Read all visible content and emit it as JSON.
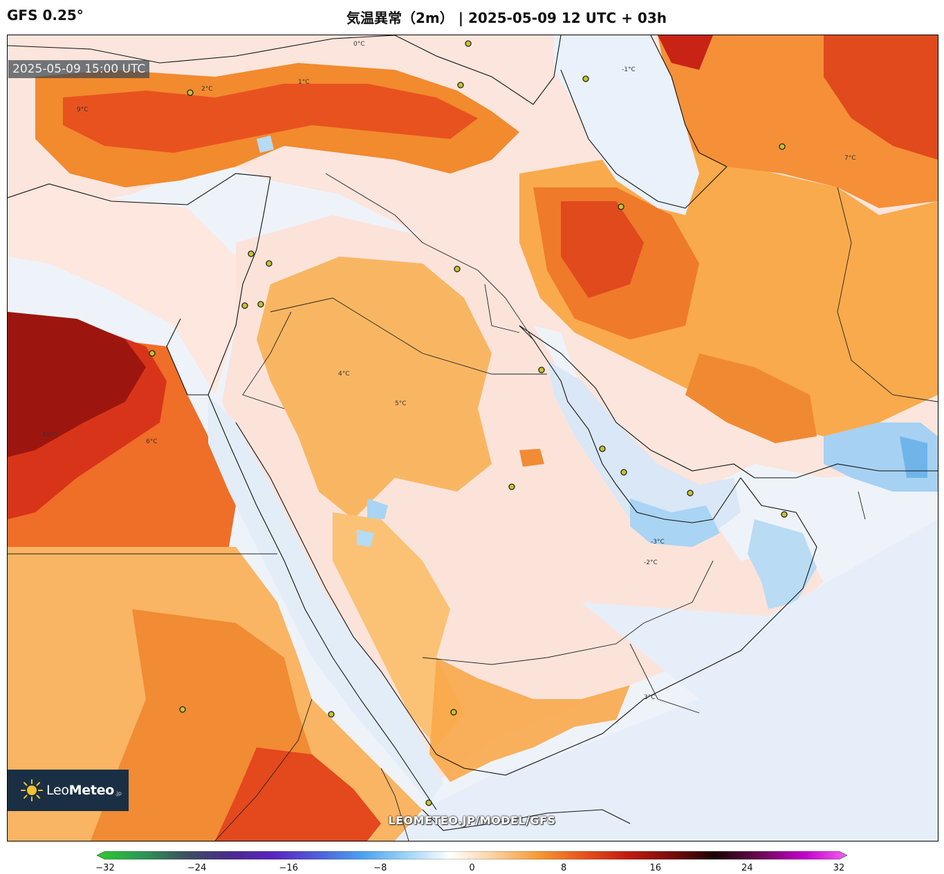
{
  "header": {
    "model": "GFS 0.25°",
    "title": "気温異常（2m） | 2025-05-09 12 UTC + 03h"
  },
  "map": {
    "timestamp": "2025-05-09 15:00 UTC",
    "watermark": "LEOMETEO.JP/MODEL/GFS",
    "contour_labels": [
      "0°C",
      "1°C",
      "-1°C",
      "2°C",
      "-2°C",
      "3°C",
      "-3°C",
      "4°C",
      "5°C",
      "6°C",
      "7°C",
      "9°C",
      "10°C"
    ],
    "colors": {
      "ocean_cool": "#e8eef8",
      "light_pos": "#fbe3dc",
      "orange": "#f9b25a",
      "deep_orange": "#f28a2e",
      "red": "#e84a1f",
      "dark_red": "#b11e10",
      "cool_blue": "#a9d4f3"
    }
  },
  "logo": {
    "name_light": "Leo",
    "name_bold": "Meteo",
    "suffix": ".jp"
  },
  "colorbar": {
    "min": -32,
    "max": 32,
    "ticks": [
      "−32",
      "−24",
      "−16",
      "−8",
      "0",
      "8",
      "16",
      "24",
      "32"
    ],
    "stops": [
      "#31c831",
      "#2c9a54",
      "#3e5060",
      "#4a2a8c",
      "#5a24c0",
      "#4f5fd8",
      "#4aa0f0",
      "#9cd3f5",
      "#ffffff",
      "#fbd0a0",
      "#f59a35",
      "#e8541e",
      "#c21d12",
      "#7a0c0c",
      "#1a0205",
      "#6a0a50",
      "#c000c8",
      "#f060f0"
    ]
  }
}
